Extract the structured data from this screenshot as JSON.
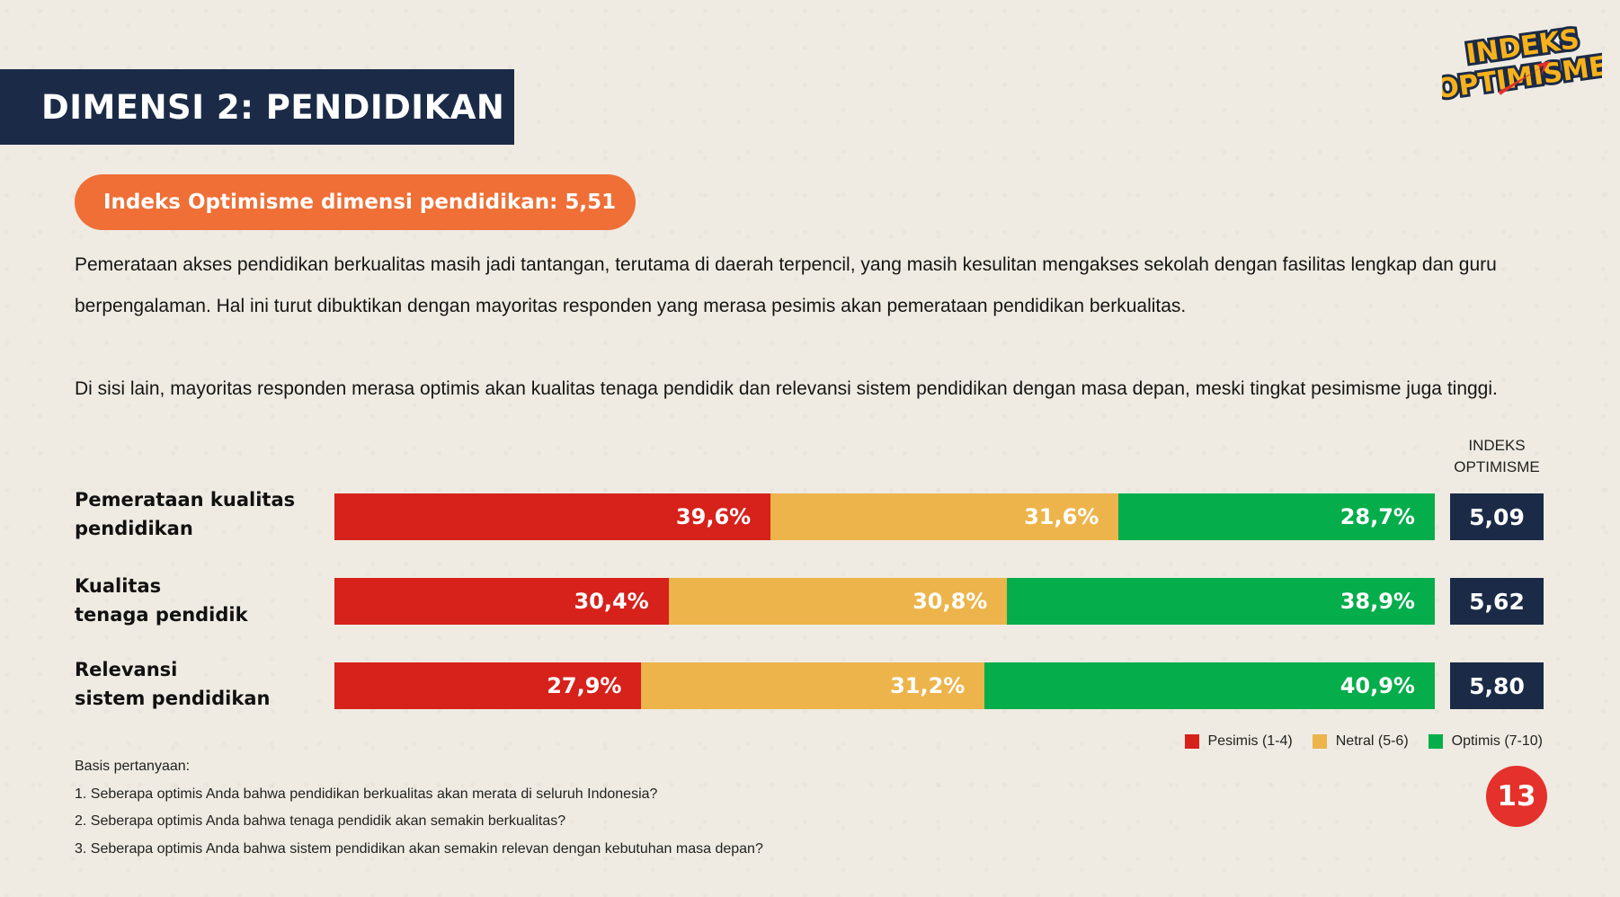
{
  "header": {
    "title": "DIMENSI 2: PENDIDIKAN",
    "logo_line1": "INDEKS",
    "logo_line2": "OPTIMISME"
  },
  "index_pill": "Indeks Optimisme dimensi pendidikan: 5,51",
  "paragraphs": [
    "Pemerataan akses pendidikan berkualitas masih jadi tantangan, terutama di daerah terpencil, yang masih kesulitan mengakses sekolah dengan fasilitas lengkap dan guru berpengalaman. Hal ini turut dibuktikan dengan mayoritas responden yang merasa pesimis akan pemerataan pendidikan berkualitas.",
    "Di sisi lain, mayoritas responden merasa optimis akan kualitas tenaga pendidik dan relevansi sistem pendidikan dengan masa depan, meski tingkat pesimisme juga tinggi."
  ],
  "chart_data": {
    "type": "bar",
    "orientation": "horizontal",
    "stacked": true,
    "categories": [
      [
        "Pemerataan kualitas",
        "pendidikan"
      ],
      [
        "Kualitas",
        "tenaga pendidik"
      ],
      [
        "Relevansi",
        "sistem pendidikan"
      ]
    ],
    "series": [
      {
        "name": "Pesimis (1-4)",
        "color": "#d7211b",
        "values": [
          39.6,
          30.4,
          27.9
        ],
        "labels": [
          "39,6%",
          "30,4%",
          "27,9%"
        ]
      },
      {
        "name": "Netral (5-6)",
        "color": "#ecb44a",
        "values": [
          31.6,
          30.8,
          31.2
        ],
        "labels": [
          "31,6%",
          "30,8%",
          "31,2%"
        ]
      },
      {
        "name": "Optimis (7-10)",
        "color": "#05ad4b",
        "values": [
          28.7,
          38.9,
          40.9
        ],
        "labels": [
          "28,7%",
          "38,9%",
          "40,9%"
        ]
      }
    ],
    "index_header": [
      "INDEKS",
      "OPTIMISME"
    ],
    "index_values": [
      "5,09",
      "5,62",
      "5,80"
    ],
    "xlim": [
      0,
      100
    ],
    "legend": "bottom-right"
  },
  "basis": {
    "title": "Basis pertanyaan:",
    "questions": [
      "1. Seberapa optimis Anda bahwa pendidikan berkualitas akan merata di seluruh Indonesia?",
      "2. Seberapa optimis Anda bahwa tenaga pendidik akan semakin berkualitas?",
      "3. Seberapa optimis Anda bahwa sistem pendidikan akan semakin relevan dengan kebutuhan masa depan?"
    ]
  },
  "page_number": "13"
}
